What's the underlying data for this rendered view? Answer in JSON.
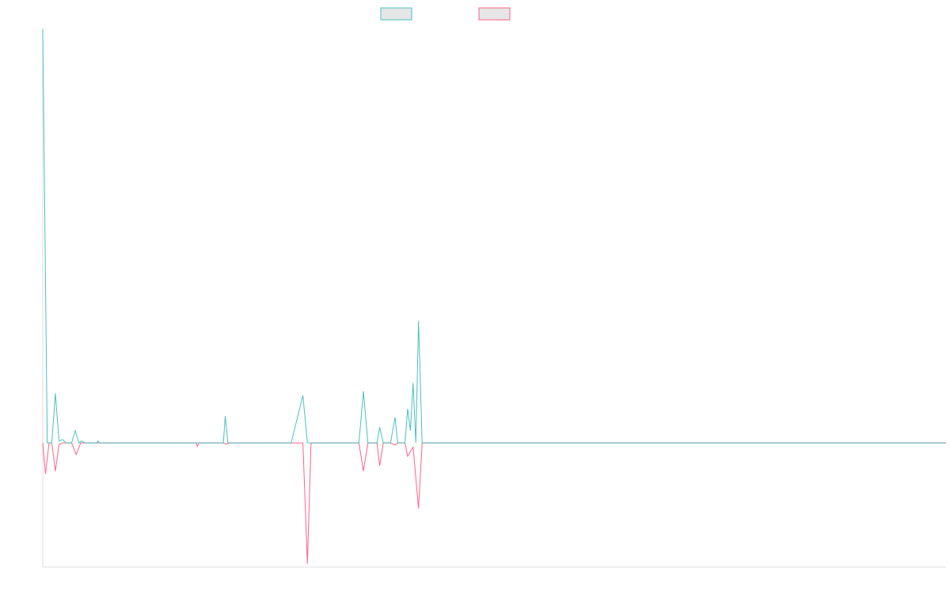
{
  "chart_data": {
    "type": "line",
    "title": "",
    "xlabel": "",
    "ylabel": "",
    "xlim": [
      0,
      100
    ],
    "ylim": [
      -0.3,
      1.0
    ],
    "grid": false,
    "legend_position": "top-center",
    "series": [
      {
        "color": "#4bc0c0",
        "points": [
          [
            0,
            1.0
          ],
          [
            0.5,
            0
          ],
          [
            1,
            0
          ],
          [
            1.4,
            0.12
          ],
          [
            1.8,
            0.005
          ],
          [
            2.2,
            0.008
          ],
          [
            2.6,
            0
          ],
          [
            3.2,
            0
          ],
          [
            3.6,
            0.03
          ],
          [
            4.0,
            0
          ],
          [
            4.3,
            0.005
          ],
          [
            4.7,
            0
          ],
          [
            6,
            0
          ],
          [
            6.1,
            0.005
          ],
          [
            6.3,
            0
          ],
          [
            17,
            0
          ],
          [
            20,
            0
          ],
          [
            20.2,
            0.065
          ],
          [
            20.5,
            0
          ],
          [
            27.5,
            0
          ],
          [
            28.8,
            0.115
          ],
          [
            29.3,
            0
          ],
          [
            35,
            0
          ],
          [
            35.5,
            0.125
          ],
          [
            36,
            0
          ],
          [
            37,
            0
          ],
          [
            37.3,
            0.038
          ],
          [
            37.7,
            0
          ],
          [
            38.5,
            0
          ],
          [
            39,
            0.062
          ],
          [
            39.3,
            0
          ],
          [
            40.1,
            0
          ],
          [
            40.4,
            0.083
          ],
          [
            40.7,
            0.03
          ],
          [
            41.0,
            0.145
          ],
          [
            41.3,
            0
          ],
          [
            41.6,
            0.295
          ],
          [
            42.0,
            0
          ],
          [
            100,
            0
          ]
        ]
      },
      {
        "color": "#ff6384",
        "points": [
          [
            0,
            0
          ],
          [
            0.3,
            -0.075
          ],
          [
            0.7,
            0
          ],
          [
            1.0,
            0
          ],
          [
            1.4,
            -0.068
          ],
          [
            1.8,
            -0.004
          ],
          [
            2.2,
            0
          ],
          [
            2.6,
            0
          ],
          [
            3.2,
            0
          ],
          [
            3.7,
            -0.028
          ],
          [
            4.2,
            0
          ],
          [
            4.7,
            0
          ],
          [
            17,
            0
          ],
          [
            17.1,
            -0.008
          ],
          [
            17.3,
            0
          ],
          [
            20,
            0
          ],
          [
            20.4,
            -0.003
          ],
          [
            20.6,
            0
          ],
          [
            28.8,
            0
          ],
          [
            29.3,
            -0.292
          ],
          [
            29.7,
            0
          ],
          [
            35,
            0
          ],
          [
            35.5,
            -0.068
          ],
          [
            36,
            0
          ],
          [
            37,
            0
          ],
          [
            37.3,
            -0.055
          ],
          [
            37.7,
            0
          ],
          [
            38.5,
            0
          ],
          [
            39,
            -0.005
          ],
          [
            39.3,
            0
          ],
          [
            40.1,
            0
          ],
          [
            40.4,
            -0.032
          ],
          [
            41.0,
            -0.01
          ],
          [
            41.6,
            -0.158
          ],
          [
            42.0,
            0
          ],
          [
            100,
            0
          ]
        ]
      }
    ]
  }
}
